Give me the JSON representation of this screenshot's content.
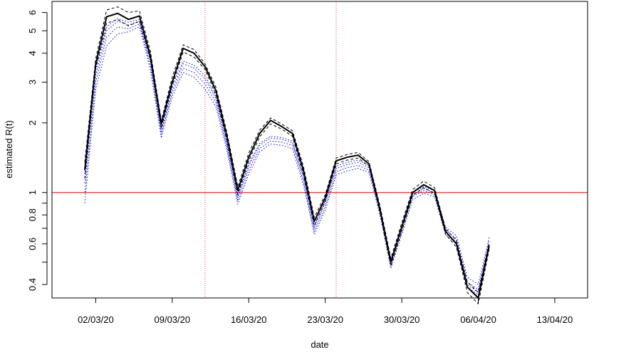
{
  "chart_data": {
    "type": "line",
    "title": "",
    "xlabel": "date",
    "ylabel": "estimated R(t)",
    "y_scale": "log",
    "xlim": [
      "2020-02-27",
      "2020-04-16"
    ],
    "ylim": [
      0.35,
      6.7
    ],
    "x_ticks": [
      {
        "date": "2020-03-02",
        "label": "02/03/20"
      },
      {
        "date": "2020-03-09",
        "label": "09/03/20"
      },
      {
        "date": "2020-03-16",
        "label": "16/03/20"
      },
      {
        "date": "2020-03-23",
        "label": "23/03/20"
      },
      {
        "date": "2020-03-30",
        "label": "30/03/20"
      },
      {
        "date": "2020-04-06",
        "label": "06/04/20"
      },
      {
        "date": "2020-04-13",
        "label": "13/04/20"
      }
    ],
    "y_ticks": [
      {
        "value": 0.4,
        "label": "0.4"
      },
      {
        "value": 0.5,
        "label": ""
      },
      {
        "value": 0.6,
        "label": "0.6"
      },
      {
        "value": 0.7,
        "label": ""
      },
      {
        "value": 0.8,
        "label": "0.8"
      },
      {
        "value": 0.9,
        "label": ""
      },
      {
        "value": 1,
        "label": "1"
      },
      {
        "value": 2,
        "label": "2"
      },
      {
        "value": 3,
        "label": "3"
      },
      {
        "value": 4,
        "label": "4"
      },
      {
        "value": 5,
        "label": "5"
      },
      {
        "value": 6,
        "label": "6"
      }
    ],
    "hline": {
      "value": 1,
      "color": "#dd0000"
    },
    "vlines": [
      {
        "date": "2020-03-12",
        "color": "#ee4444"
      },
      {
        "date": "2020-03-24",
        "color": "#ee4444"
      }
    ],
    "x": [
      "2020-03-01",
      "2020-03-02",
      "2020-03-03",
      "2020-03-04",
      "2020-03-05",
      "2020-03-06",
      "2020-03-07",
      "2020-03-08",
      "2020-03-09",
      "2020-03-10",
      "2020-03-11",
      "2020-03-12",
      "2020-03-13",
      "2020-03-14",
      "2020-03-15",
      "2020-03-16",
      "2020-03-17",
      "2020-03-18",
      "2020-03-19",
      "2020-03-20",
      "2020-03-21",
      "2020-03-22",
      "2020-03-23",
      "2020-03-24",
      "2020-03-25",
      "2020-03-26",
      "2020-03-27",
      "2020-03-28",
      "2020-03-29",
      "2020-03-30",
      "2020-03-31",
      "2020-04-01",
      "2020-04-02",
      "2020-04-03",
      "2020-04-04",
      "2020-04-05",
      "2020-04-06",
      "2020-04-07"
    ],
    "series": [
      {
        "color": "#000000",
        "style": "solid",
        "width": 2,
        "values": [
          1.25,
          3.6,
          5.75,
          5.95,
          5.6,
          5.8,
          3.9,
          1.98,
          3.0,
          4.2,
          4.0,
          3.5,
          2.75,
          1.75,
          1.02,
          1.42,
          1.8,
          2.05,
          1.93,
          1.8,
          1.25,
          0.75,
          0.95,
          1.37,
          1.42,
          1.45,
          1.33,
          0.85,
          0.5,
          0.71,
          1.0,
          1.08,
          1.02,
          0.68,
          0.6,
          0.39,
          0.35,
          0.59
        ]
      },
      {
        "color": "#000000",
        "style": "dashed",
        "width": 1,
        "values": [
          1.35,
          3.8,
          6.15,
          6.35,
          6.0,
          6.1,
          4.1,
          2.05,
          3.15,
          4.35,
          4.15,
          3.6,
          2.85,
          1.82,
          1.06,
          1.48,
          1.86,
          2.1,
          1.98,
          1.85,
          1.3,
          0.78,
          0.98,
          1.41,
          1.46,
          1.49,
          1.36,
          0.88,
          0.52,
          0.74,
          1.03,
          1.12,
          1.05,
          0.7,
          0.62,
          0.41,
          0.37,
          0.61
        ]
      },
      {
        "color": "#000000",
        "style": "dashed",
        "width": 1,
        "values": [
          1.15,
          3.45,
          5.4,
          5.6,
          5.25,
          5.5,
          3.75,
          1.9,
          2.9,
          4.05,
          3.85,
          3.4,
          2.65,
          1.68,
          0.98,
          1.37,
          1.74,
          1.98,
          1.88,
          1.75,
          1.2,
          0.72,
          0.92,
          1.33,
          1.38,
          1.41,
          1.3,
          0.82,
          0.48,
          0.68,
          0.97,
          1.05,
          0.99,
          0.66,
          0.58,
          0.37,
          0.33,
          0.57
        ]
      },
      {
        "color": "#0000ee",
        "style": "dotted",
        "width": 1,
        "values": [
          1.1,
          3.2,
          5.0,
          5.5,
          5.3,
          5.5,
          3.7,
          1.83,
          2.8,
          3.6,
          3.45,
          3.1,
          2.55,
          1.62,
          0.95,
          1.3,
          1.6,
          1.72,
          1.7,
          1.64,
          1.16,
          0.7,
          0.9,
          1.27,
          1.32,
          1.35,
          1.28,
          0.84,
          0.5,
          0.7,
          0.98,
          1.04,
          1.0,
          0.69,
          0.63,
          0.41,
          0.38,
          0.62
        ]
      },
      {
        "color": "#0000ee",
        "style": "dotted",
        "width": 1,
        "values": [
          1.0,
          3.0,
          4.7,
          5.2,
          5.1,
          5.35,
          3.55,
          1.78,
          2.7,
          3.45,
          3.3,
          2.95,
          2.45,
          1.57,
          0.92,
          1.25,
          1.55,
          1.67,
          1.65,
          1.6,
          1.12,
          0.68,
          0.87,
          1.23,
          1.28,
          1.31,
          1.25,
          0.82,
          0.49,
          0.68,
          0.96,
          1.02,
          0.98,
          0.67,
          0.61,
          0.4,
          0.37,
          0.6
        ]
      },
      {
        "color": "#0000ee",
        "style": "dotted",
        "width": 1,
        "values": [
          0.9,
          2.8,
          4.3,
          4.85,
          4.95,
          5.2,
          3.4,
          1.72,
          2.6,
          3.3,
          3.15,
          2.8,
          2.35,
          1.52,
          0.89,
          1.2,
          1.5,
          1.62,
          1.6,
          1.55,
          1.08,
          0.66,
          0.84,
          1.19,
          1.24,
          1.27,
          1.22,
          0.8,
          0.47,
          0.66,
          0.93,
          0.99,
          0.96,
          0.66,
          0.6,
          0.39,
          0.36,
          0.59
        ]
      },
      {
        "color": "#0000ee",
        "style": "dotted",
        "width": 1,
        "values": [
          1.2,
          3.4,
          5.2,
          5.65,
          5.45,
          5.6,
          3.8,
          1.88,
          2.9,
          3.7,
          3.55,
          3.2,
          2.6,
          1.66,
          0.97,
          1.33,
          1.63,
          1.75,
          1.73,
          1.67,
          1.19,
          0.72,
          0.92,
          1.3,
          1.35,
          1.38,
          1.31,
          0.86,
          0.51,
          0.72,
          1.0,
          1.06,
          1.02,
          0.71,
          0.65,
          0.43,
          0.4,
          0.64
        ]
      }
    ]
  }
}
